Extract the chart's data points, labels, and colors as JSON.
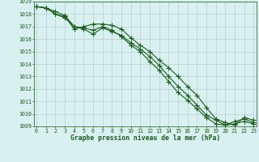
{
  "title": "Graphe pression niveau de la mer (hPa)",
  "hours": [
    0,
    1,
    2,
    3,
    4,
    5,
    6,
    7,
    8,
    9,
    10,
    11,
    12,
    13,
    14,
    15,
    16,
    17,
    18,
    19,
    20,
    21,
    22,
    23
  ],
  "series": [
    [
      1018.6,
      1018.5,
      1018.2,
      1017.9,
      1017.0,
      1016.9,
      1016.7,
      1017.0,
      1016.7,
      1016.2,
      1015.5,
      1015.0,
      1014.2,
      1013.5,
      1012.6,
      1011.7,
      1011.1,
      1010.4,
      1009.7,
      1009.2,
      1009.1,
      1009.4,
      1009.6,
      1009.3
    ],
    [
      1018.6,
      1018.5,
      1018.0,
      1017.7,
      1017.0,
      1016.8,
      1016.4,
      1016.9,
      1016.6,
      1016.3,
      1015.7,
      1015.2,
      1014.6,
      1013.9,
      1013.0,
      1012.2,
      1011.5,
      1010.7,
      1009.9,
      1009.5,
      1009.1,
      1009.2,
      1009.4,
      1009.2
    ],
    [
      1018.6,
      1018.5,
      1018.0,
      1017.8,
      1016.8,
      1017.0,
      1017.2,
      1017.2,
      1017.1,
      1016.8,
      1016.1,
      1015.5,
      1015.0,
      1014.3,
      1013.7,
      1013.0,
      1012.2,
      1011.5,
      1010.5,
      1009.6,
      1009.3,
      1009.1,
      1009.7,
      1009.5
    ]
  ],
  "line_color": "#1a5c1a",
  "bg_color": "#d8f0f0",
  "grid_color": "#aacaca",
  "ylim": [
    1009,
    1019
  ],
  "yticks": [
    1009,
    1010,
    1011,
    1012,
    1013,
    1014,
    1015,
    1016,
    1017,
    1018,
    1019
  ],
  "xticks": [
    0,
    1,
    2,
    3,
    4,
    5,
    6,
    7,
    8,
    9,
    10,
    11,
    12,
    13,
    14,
    15,
    16,
    17,
    18,
    19,
    20,
    21,
    22,
    23
  ],
  "tick_fontsize": 4.8,
  "title_fontsize": 5.8,
  "marker_size": 2.0,
  "line_width": 0.8
}
